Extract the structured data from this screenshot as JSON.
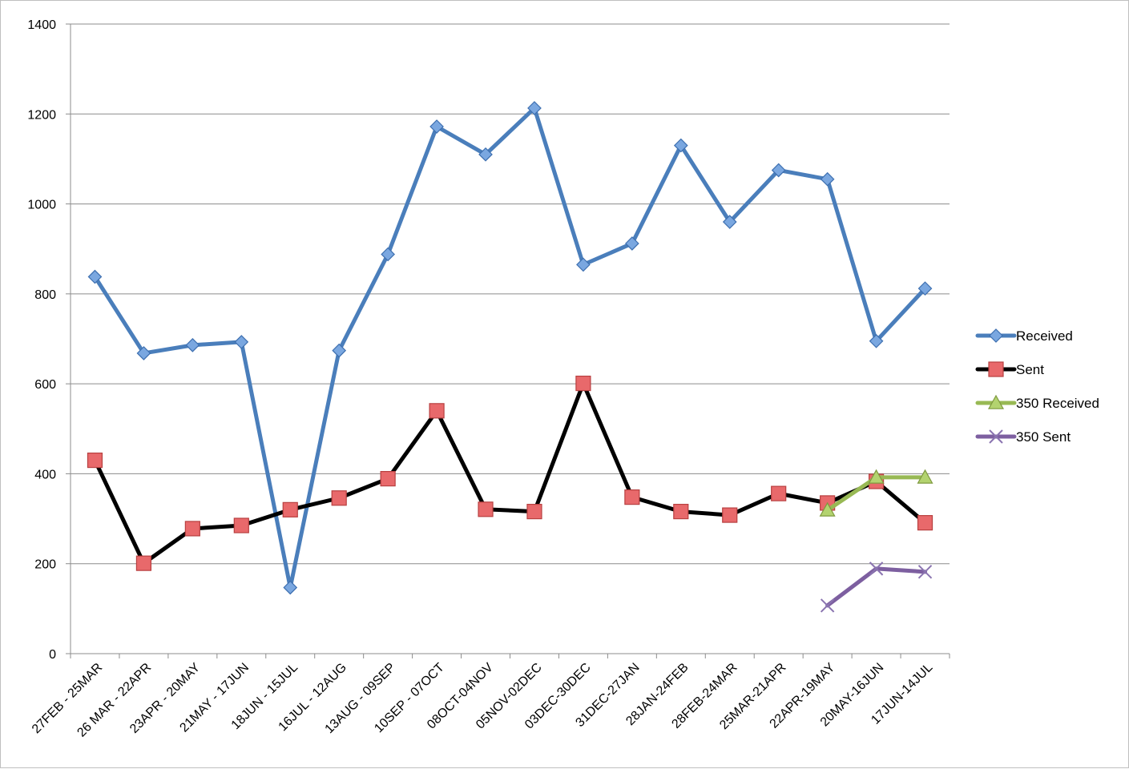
{
  "chart_data": {
    "type": "line",
    "title": "",
    "xlabel": "",
    "ylabel": "",
    "ylim": [
      0,
      1400
    ],
    "yticks": [
      0,
      200,
      400,
      600,
      800,
      1000,
      1200,
      1400
    ],
    "grid": true,
    "legend_position": "right",
    "categories": [
      "27FEB - 25MAR",
      "26 MAR - 22APR",
      "23APR - 20MAY",
      "21MAY - 17JUN",
      "18JUN - 15JUL",
      "16JUL - 12AUG",
      "13AUG - 09SEP",
      "10SEP - 07OCT",
      "08OCT-04NOV",
      "05NOV-02DEC",
      "03DEC-30DEC",
      "31DEC-27JAN",
      "28JAN-24FEB",
      "28FEB-24MAR",
      "25MAR-21APR",
      "22APR-19MAY",
      "20MAY-16JUN",
      "17JUN-14JUL"
    ],
    "series": [
      {
        "name": "Received",
        "color": "#4a7ebb",
        "marker": "diamond",
        "values": [
          838,
          668,
          686,
          693,
          147,
          674,
          888,
          1172,
          1110,
          1213,
          865,
          912,
          1130,
          960,
          1075,
          1055,
          695,
          812
        ]
      },
      {
        "name": "Sent",
        "color": "#000000",
        "marker": "square",
        "marker_color": "#e8696b",
        "values": [
          430,
          201,
          278,
          285,
          320,
          346,
          389,
          540,
          321,
          316,
          601,
          348,
          316,
          308,
          356,
          335,
          383,
          291
        ]
      },
      {
        "name": "350 Received",
        "color": "#98b954",
        "marker": "triangle",
        "values": [
          null,
          null,
          null,
          null,
          null,
          null,
          null,
          null,
          null,
          null,
          null,
          null,
          null,
          null,
          null,
          319,
          392,
          392
        ]
      },
      {
        "name": "350 Sent",
        "color": "#7d5fa0",
        "marker": "x",
        "values": [
          null,
          null,
          null,
          null,
          null,
          null,
          null,
          null,
          null,
          null,
          null,
          null,
          null,
          null,
          null,
          107,
          189,
          182
        ]
      }
    ]
  }
}
